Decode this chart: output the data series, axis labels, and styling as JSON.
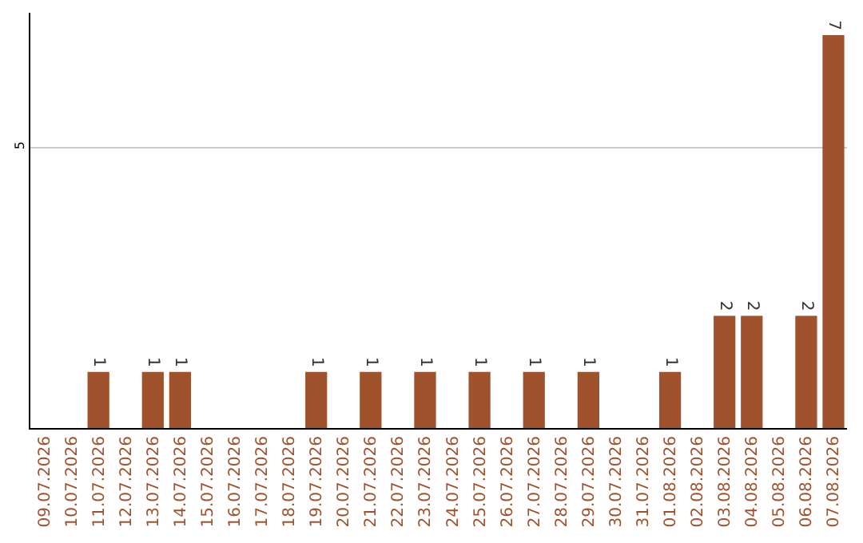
{
  "chart_data": {
    "type": "bar",
    "categories": [
      "09.07.2026",
      "10.07.2026",
      "11.07.2026",
      "12.07.2026",
      "13.07.2026",
      "14.07.2026",
      "15.07.2026",
      "16.07.2026",
      "17.07.2026",
      "18.07.2026",
      "19.07.2026",
      "20.07.2026",
      "21.07.2026",
      "22.07.2026",
      "23.07.2026",
      "24.07.2026",
      "25.07.2026",
      "26.07.2026",
      "27.07.2026",
      "28.07.2026",
      "29.07.2026",
      "30.07.2026",
      "31.07.2026",
      "01.08.2026",
      "02.08.2026",
      "03.08.2026",
      "04.08.2026",
      "05.08.2026",
      "06.08.2026",
      "07.08.2026"
    ],
    "values": [
      0,
      0,
      1,
      0,
      1,
      1,
      0,
      0,
      0,
      0,
      1,
      0,
      1,
      0,
      1,
      0,
      1,
      0,
      1,
      0,
      1,
      0,
      0,
      1,
      0,
      2,
      2,
      0,
      2,
      7
    ],
    "value_labels": [
      null,
      null,
      "1",
      null,
      "1",
      "1",
      null,
      null,
      null,
      null,
      "1",
      null,
      "1",
      null,
      "1",
      null,
      "1",
      null,
      "1",
      null,
      "1",
      null,
      null,
      "1",
      null,
      "2",
      "2",
      null,
      "2",
      "7"
    ],
    "color": "#a0522d",
    "ylim": [
      0,
      7.4
    ],
    "yticks": [
      5
    ],
    "grid": "y",
    "legend": false
  }
}
